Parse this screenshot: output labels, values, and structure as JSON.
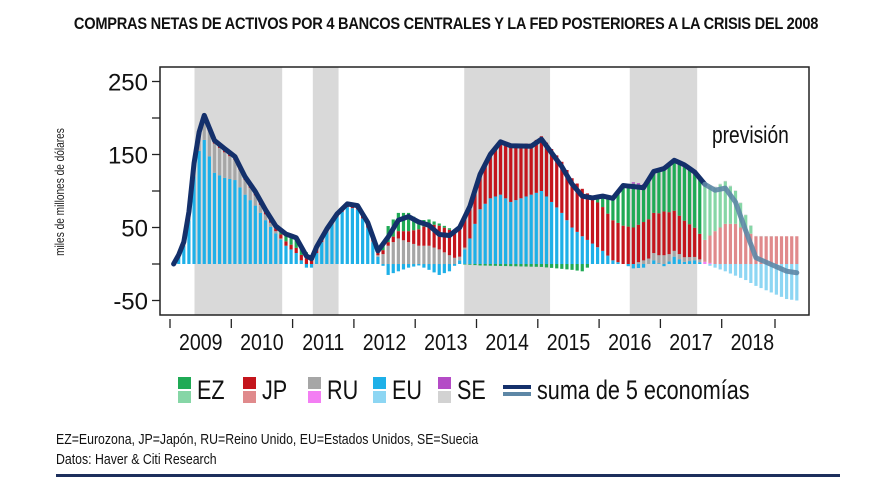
{
  "title": "COMPRAS NETAS DE ACTIVOS POR 4 BANCOS CENTRALES Y LA FED POSTERIORES A LA CRISIS DEL 2008",
  "chart_data": {
    "type": "bar",
    "stacked": true,
    "title": "COMPRAS NETAS DE ACTIVOS POR 4 BANCOS CENTRALES Y LA FED POSTERIORES A LA CRISIS DEL 2008",
    "ylabel": "miles de millones de dólares",
    "xlabel": "",
    "ylim": [
      -65,
      270
    ],
    "yticks": [
      250,
      150,
      50,
      -50
    ],
    "yminor_ticks": [
      200,
      100,
      0
    ],
    "xticks": [
      "2009",
      "2010",
      "2011",
      "2012",
      "2013",
      "2014",
      "2015",
      "2016",
      "2017",
      "2018"
    ],
    "x_start_year": 2009,
    "frequency": "monthly",
    "forecast_start_index": 104,
    "annotation": "previsión",
    "shaded_periods": [
      [
        2009.4,
        2010.83
      ],
      [
        2011.33,
        2011.75
      ],
      [
        2013.8,
        2015.2
      ],
      [
        2016.5,
        2017.6
      ]
    ],
    "colors": {
      "EZ": "#1faa55",
      "EZ_forecast": "#86d6a6",
      "JP": "#c4151c",
      "JP_forecast": "#e08a8c",
      "RU": "#a6a6a6",
      "RU_forecast": "#f37ef3",
      "EU": "#1eb0e8",
      "EU_forecast": "#8dd6f3",
      "SE": "#b44bc6",
      "SE_forecast": "#d2d2d2",
      "sum": "#14306b",
      "sum_forecast": "#5d87a6",
      "shade": "#d9d9d9"
    },
    "series": [
      {
        "name": "EZ",
        "keyframes": [
          [
            0,
            0
          ],
          [
            20,
            2
          ],
          [
            22,
            10
          ],
          [
            24,
            14
          ],
          [
            26,
            8
          ],
          [
            28,
            3
          ],
          [
            30,
            0
          ],
          [
            40,
            0
          ],
          [
            42,
            22
          ],
          [
            44,
            25
          ],
          [
            46,
            25
          ],
          [
            48,
            12
          ],
          [
            50,
            6
          ],
          [
            52,
            3
          ],
          [
            54,
            2
          ],
          [
            56,
            0
          ],
          [
            60,
            -2
          ],
          [
            72,
            -4
          ],
          [
            78,
            -8
          ],
          [
            80,
            -10
          ],
          [
            82,
            0
          ],
          [
            84,
            15
          ],
          [
            86,
            30
          ],
          [
            88,
            55
          ],
          [
            90,
            60
          ],
          [
            92,
            50
          ],
          [
            96,
            60
          ],
          [
            100,
            75
          ],
          [
            104,
            75
          ],
          [
            106,
            60
          ],
          [
            108,
            58
          ],
          [
            110,
            45
          ],
          [
            112,
            22
          ],
          [
            114,
            0
          ],
          [
            122,
            0
          ]
        ]
      },
      {
        "name": "JP",
        "keyframes": [
          [
            0,
            0
          ],
          [
            2,
            2
          ],
          [
            6,
            3
          ],
          [
            10,
            4
          ],
          [
            14,
            3
          ],
          [
            20,
            5
          ],
          [
            26,
            8
          ],
          [
            30,
            3
          ],
          [
            36,
            5
          ],
          [
            38,
            7
          ],
          [
            40,
            6
          ],
          [
            42,
            5
          ],
          [
            46,
            15
          ],
          [
            50,
            30
          ],
          [
            54,
            35
          ],
          [
            56,
            40
          ],
          [
            60,
            50
          ],
          [
            64,
            75
          ],
          [
            66,
            80
          ],
          [
            70,
            70
          ],
          [
            72,
            75
          ],
          [
            76,
            70
          ],
          [
            80,
            65
          ],
          [
            84,
            60
          ],
          [
            86,
            55
          ],
          [
            90,
            50
          ],
          [
            94,
            55
          ],
          [
            96,
            60
          ],
          [
            98,
            55
          ],
          [
            100,
            50
          ],
          [
            102,
            40
          ],
          [
            104,
            30
          ],
          [
            106,
            45
          ],
          [
            108,
            55
          ],
          [
            110,
            55
          ],
          [
            112,
            45
          ],
          [
            114,
            38
          ],
          [
            122,
            38
          ]
        ]
      },
      {
        "name": "RU",
        "keyframes": [
          [
            0,
            0
          ],
          [
            2,
            3
          ],
          [
            4,
            15
          ],
          [
            6,
            30
          ],
          [
            8,
            40
          ],
          [
            10,
            35
          ],
          [
            14,
            20
          ],
          [
            18,
            8
          ],
          [
            20,
            3
          ],
          [
            22,
            0
          ],
          [
            38,
            0
          ],
          [
            40,
            2
          ],
          [
            42,
            25
          ],
          [
            44,
            35
          ],
          [
            46,
            30
          ],
          [
            48,
            25
          ],
          [
            50,
            25
          ],
          [
            52,
            20
          ],
          [
            54,
            12
          ],
          [
            56,
            5
          ],
          [
            58,
            0
          ],
          [
            90,
            0
          ],
          [
            94,
            10
          ],
          [
            96,
            12
          ],
          [
            98,
            8
          ],
          [
            104,
            3
          ],
          [
            106,
            0
          ],
          [
            122,
            0
          ]
        ]
      },
      {
        "name": "EU",
        "keyframes": [
          [
            0,
            0
          ],
          [
            1,
            10
          ],
          [
            2,
            25
          ],
          [
            3,
            60
          ],
          [
            4,
            120
          ],
          [
            5,
            155
          ],
          [
            6,
            170
          ],
          [
            8,
            125
          ],
          [
            10,
            118
          ],
          [
            12,
            115
          ],
          [
            14,
            95
          ],
          [
            16,
            80
          ],
          [
            18,
            60
          ],
          [
            20,
            42
          ],
          [
            22,
            25
          ],
          [
            24,
            15
          ],
          [
            25,
            5
          ],
          [
            26,
            -5
          ],
          [
            27,
            -5
          ],
          [
            28,
            15
          ],
          [
            30,
            45
          ],
          [
            32,
            65
          ],
          [
            34,
            78
          ],
          [
            36,
            75
          ],
          [
            38,
            50
          ],
          [
            40,
            10
          ],
          [
            42,
            -15
          ],
          [
            44,
            -10
          ],
          [
            46,
            -5
          ],
          [
            48,
            -2
          ],
          [
            50,
            -8
          ],
          [
            52,
            -15
          ],
          [
            54,
            -10
          ],
          [
            56,
            5
          ],
          [
            58,
            35
          ],
          [
            60,
            75
          ],
          [
            62,
            90
          ],
          [
            64,
            95
          ],
          [
            66,
            85
          ],
          [
            70,
            95
          ],
          [
            72,
            100
          ],
          [
            74,
            85
          ],
          [
            76,
            70
          ],
          [
            78,
            50
          ],
          [
            80,
            38
          ],
          [
            82,
            28
          ],
          [
            84,
            18
          ],
          [
            86,
            5
          ],
          [
            88,
            0
          ],
          [
            90,
            -6
          ],
          [
            92,
            -5
          ],
          [
            94,
            5
          ],
          [
            96,
            -3
          ],
          [
            98,
            10
          ],
          [
            100,
            3
          ],
          [
            102,
            5
          ],
          [
            104,
            0
          ],
          [
            106,
            -5
          ],
          [
            108,
            -10
          ],
          [
            110,
            -16
          ],
          [
            112,
            -22
          ],
          [
            114,
            -30
          ],
          [
            116,
            -36
          ],
          [
            118,
            -42
          ],
          [
            120,
            -48
          ],
          [
            122,
            -50
          ]
        ]
      },
      {
        "name": "SE",
        "keyframes": [
          [
            0,
            0
          ],
          [
            88,
            0
          ],
          [
            90,
            2
          ],
          [
            92,
            2
          ],
          [
            122,
            0
          ]
        ]
      }
    ],
    "sum_line_label": "suma de 5 economías"
  },
  "legend": {
    "items": [
      {
        "label": "EZ",
        "color": "#1faa55",
        "forecast_color": "#86d6a6"
      },
      {
        "label": "JP",
        "color": "#c4151c",
        "forecast_color": "#e08a8c"
      },
      {
        "label": "RU",
        "color": "#a6a6a6",
        "forecast_color": "#f37ef3"
      },
      {
        "label": "EU",
        "color": "#1eb0e8",
        "forecast_color": "#8dd6f3"
      },
      {
        "label": "SE",
        "color": "#b44bc6",
        "forecast_color": "#d2d2d2"
      }
    ],
    "sum_label": "suma de 5 economías",
    "sum_color": "#14306b",
    "sum_forecast_color": "#5d87a6"
  },
  "notes": {
    "abbreviations": "EZ=Eurozona, JP=Japón, RU=Reino Unido, EU=Estados Unidos, SE=Suecia",
    "source": "Datos: Haver & Citi Research"
  }
}
